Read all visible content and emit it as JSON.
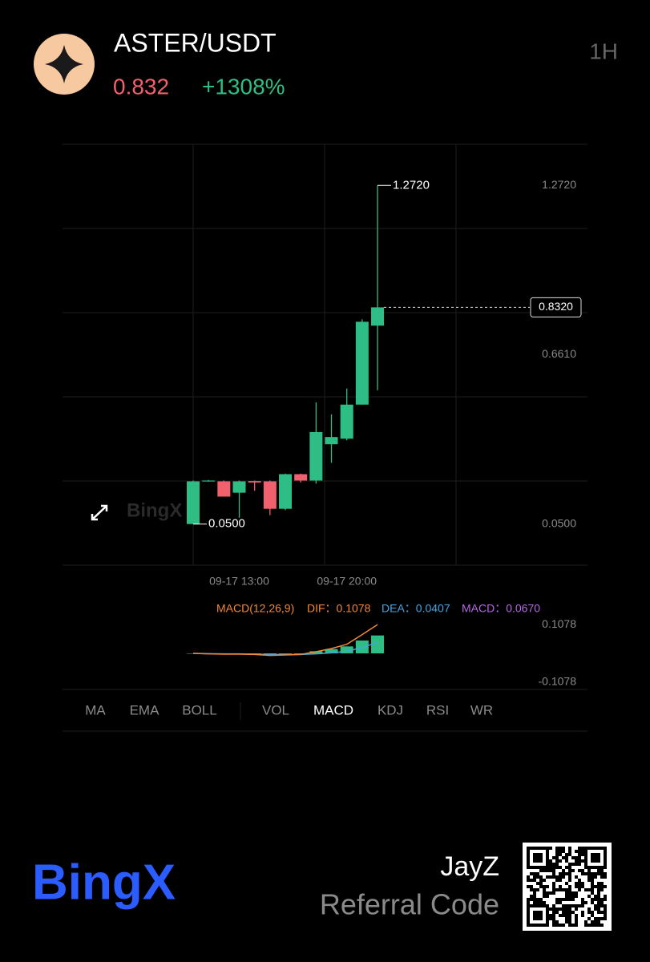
{
  "header": {
    "pair": "ASTER/USDT",
    "price": "0.832",
    "change": "+1308%",
    "interval": "1H"
  },
  "chart_data": [
    {
      "type": "candlestick",
      "categories": [
        null,
        null,
        null,
        "09-17 13:00",
        null,
        null,
        null,
        null,
        null,
        null,
        "09-17 20:00",
        null,
        null
      ],
      "open": [
        0.05,
        0.205,
        0.204,
        0.163,
        0.205,
        0.204,
        0.105,
        0.23,
        0.207,
        0.338,
        0.358,
        0.481,
        0.766
      ],
      "high": [
        0.207,
        0.209,
        0.207,
        0.207,
        0.207,
        0.207,
        0.232,
        0.232,
        0.489,
        0.446,
        0.539,
        0.789,
        1.272
      ],
      "low": [
        0.05,
        0.203,
        0.149,
        0.073,
        0.17,
        0.082,
        0.1,
        0.2,
        0.196,
        0.271,
        0.352,
        0.481,
        0.533
      ],
      "close": [
        0.204,
        0.207,
        0.149,
        0.204,
        0.2,
        0.105,
        0.23,
        0.207,
        0.382,
        0.364,
        0.481,
        0.78,
        0.832
      ],
      "up_color": "#2ebd85",
      "down_color": "#f0616d",
      "ylim": [
        -0.0984,
        1.4204
      ],
      "yticks": [
        {
          "value": 1.272,
          "label": "1.2720"
        },
        {
          "value": 0.661,
          "label": "0.6610"
        },
        {
          "value": 0.05,
          "label": "0.0500"
        }
      ],
      "current_price": {
        "value": 0.832,
        "label": "0.8320"
      },
      "annotations": [
        {
          "value": 1.272,
          "label": "1.2720"
        },
        {
          "value": 0.05,
          "label": "0.0500"
        }
      ]
    },
    {
      "type": "macd",
      "title": "MACD(12,26,9)",
      "title_color": "#f0883a",
      "series": [
        {
          "name": "DIF：0.1078",
          "color": "#f0883a",
          "values": [
            0,
            -0.002,
            -0.003,
            -0.003,
            -0.004,
            -0.008,
            -0.006,
            -0.004,
            0.006,
            0.018,
            0.034,
            0.07,
            0.1078
          ]
        },
        {
          "name": "DEA：0.0407",
          "color": "#4aa3df",
          "values": [
            0,
            -0.001,
            -0.002,
            -0.002,
            -0.003,
            -0.004,
            -0.004,
            -0.004,
            -0.002,
            0.002,
            0.008,
            0.022,
            0.0407
          ]
        },
        {
          "name": "MACD：0.0670",
          "color": "#b569e6",
          "values": [
            0,
            -0.001,
            -0.001,
            -0.001,
            -0.001,
            -0.004,
            -0.002,
            0,
            0.008,
            0.016,
            0.026,
            0.048,
            0.067
          ]
        }
      ],
      "bar_color": "#2ebd85",
      "ylim": [
        -0.135,
        0.135
      ],
      "yticks": [
        0.1078,
        -0.1078
      ]
    }
  ],
  "tabs": [
    "MA",
    "EMA",
    "BOLL",
    "VOL",
    "MACD",
    "KDJ",
    "RSI",
    "WR"
  ],
  "footer": {
    "brand": "BingX",
    "user": "JayZ",
    "caption": "Referral Code"
  }
}
